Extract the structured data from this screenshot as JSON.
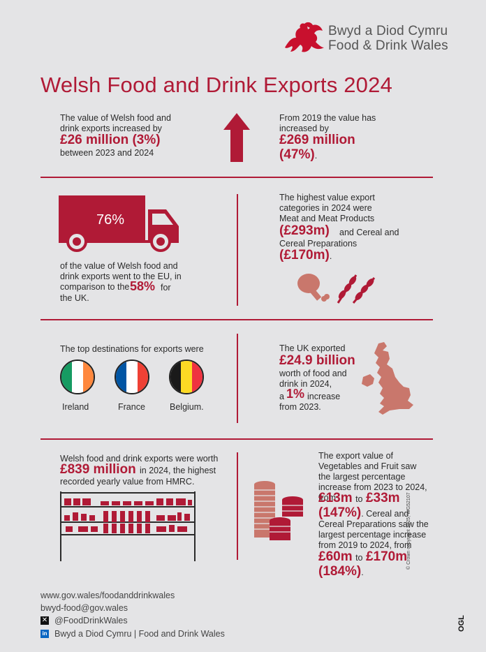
{
  "brand": {
    "line1": "Bwyd a Diod Cymru",
    "line2": "Food & Drink Wales"
  },
  "title": "Welsh Food and Drink Exports 2024",
  "s1": {
    "left_pre": "The value of Welsh food and drink exports increased by",
    "left_big": "£26 million (3%)",
    "left_post": "between 2023 and 2024",
    "right_pre": "From 2019 the value has increased by",
    "right_big1": "£269 million",
    "right_big2": "(47%)",
    "right_dot": "."
  },
  "s2": {
    "truck_pct": "76%",
    "left_text1": "of the value of Welsh food and drink exports went to the EU, in comparison to the",
    "left_big": "58%",
    "left_text2": "for the UK.",
    "right_text1": "The highest value export categories in 2024 were Meat and Meat Products",
    "right_big1": "(£293m)",
    "right_text2": "and Cereal and Cereal Preparations",
    "right_big2": "(£170m)",
    "right_dot": "."
  },
  "s3": {
    "heading": "The top destinations for exports were",
    "countries": [
      "Ireland",
      "France",
      "Belgium."
    ],
    "right_pre": "The UK exported",
    "right_big": "£24.9 billion",
    "right_mid": "worth of food and drink in 2024,",
    "right_a": "a",
    "right_pct": "1%",
    "right_inc": "increase",
    "right_post": "from 2023."
  },
  "s4": {
    "left_pre": "Welsh food and drink exports were worth",
    "left_big": "£839 million",
    "left_mid": "in 2024, the highest recorded yearly value from HMRC.",
    "right_text1": "The export value of Vegetables and Fruit saw the largest percentage increase from 2023 to 2024, from",
    "right_b1": "£13m",
    "right_to1": "to",
    "right_b2": "£33m",
    "right_b3": "(147%)",
    "right_text2": ". Cereal and Cereal Preparations saw the largest percentage increase from 2019 to 2024, from",
    "right_b4": "£60m",
    "right_to2": "to",
    "right_b5": "£170m",
    "right_b6": "(184%)",
    "right_dot": "."
  },
  "footer": {
    "web": "www.gov.wales/foodanddrinkwales",
    "email": "bwyd-food@gov.wales",
    "x_handle": "@FoodDrinkWales",
    "linkedin": "Bwyd a Diod Cymru | Food and Drink Wales"
  },
  "copyright": "© Crown copyright 2025, WG52107",
  "ogl": "OGL",
  "colors": {
    "accent": "#b01a36",
    "background": "#e4e4e6"
  }
}
